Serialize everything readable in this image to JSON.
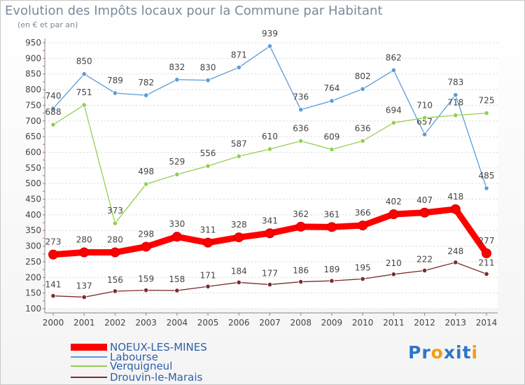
{
  "title": "Evolution des Impôts locaux pour la Commune par Habitant",
  "subtitle": "(en € et par an)",
  "chart_data": {
    "type": "line",
    "title": "Evolution des Impôts locaux pour la Commune par Habitant",
    "subtitle": "(en € et par an)",
    "xlabel": "",
    "ylabel": "",
    "x": [
      "2000",
      "2001",
      "2002",
      "2003",
      "2004",
      "2005",
      "2006",
      "2007",
      "2008",
      "2009",
      "2010",
      "2011",
      "2012",
      "2013",
      "2014"
    ],
    "ylim": [
      100,
      950
    ],
    "yticks": [
      100,
      150,
      200,
      250,
      300,
      350,
      400,
      450,
      500,
      550,
      600,
      650,
      700,
      750,
      800,
      850,
      900,
      950
    ],
    "grid": "horizontal dotted",
    "legend_position": "bottom",
    "series": [
      {
        "name": "NOEUX-LES-MINES",
        "color": "#ff0000",
        "emphasis": true,
        "values": [
          273,
          280,
          280,
          298,
          330,
          311,
          328,
          341,
          362,
          361,
          366,
          402,
          407,
          418,
          277
        ]
      },
      {
        "name": "Labourse",
        "color": "#5b9bd5",
        "values": [
          740,
          850,
          789,
          782,
          832,
          830,
          871,
          939,
          736,
          764,
          802,
          862,
          657,
          783,
          485
        ]
      },
      {
        "name": "Verquigneul",
        "color": "#92d050",
        "values": [
          688,
          751,
          373,
          498,
          529,
          556,
          587,
          610,
          636,
          609,
          636,
          694,
          710,
          718,
          725
        ]
      },
      {
        "name": "Drouvin-le-Marais",
        "color": "#7b2c2c",
        "values": [
          141,
          137,
          156,
          159,
          158,
          171,
          184,
          177,
          186,
          189,
          195,
          210,
          222,
          248,
          211
        ]
      }
    ]
  },
  "logo": {
    "letters": [
      "P",
      "r",
      "o",
      "x",
      "i",
      "t",
      "i"
    ],
    "colors": [
      "#2e75c8",
      "#2e75c8",
      "#f39c12",
      "#2e75c8",
      "#2e75c8",
      "#2e75c8",
      "#f39c12"
    ]
  }
}
